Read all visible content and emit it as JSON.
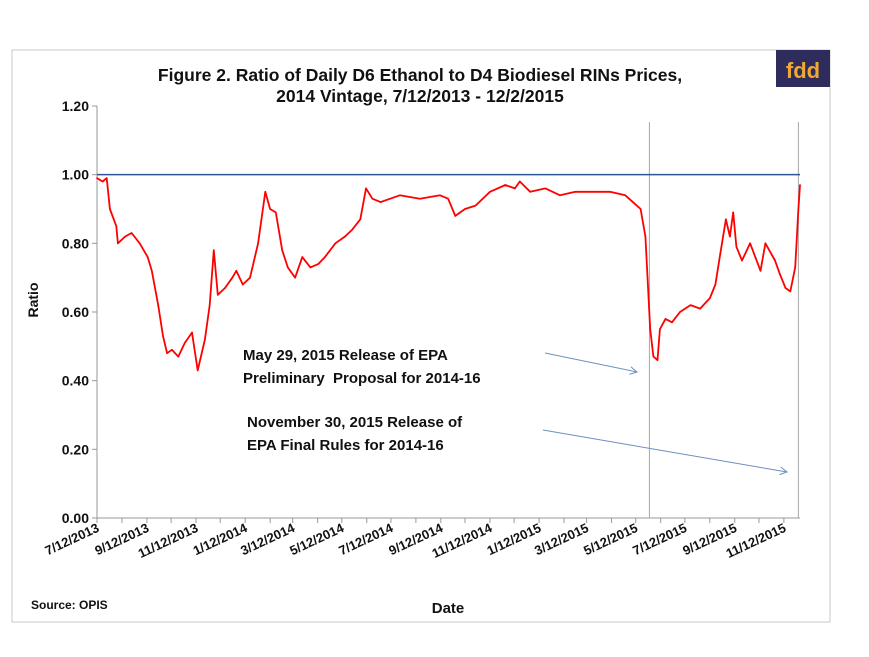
{
  "logo": {
    "text": "fdd",
    "bg": "#2e2c5c",
    "fg": "#f0a830"
  },
  "source": "Source: OPIS",
  "chart_data": {
    "type": "line",
    "title": "Figure 2. Ratio of Daily D6 Ethanol to D4 Biodiesel RINs Prices,",
    "subtitle": "2014 Vintage, 7/12/2013 - 12/2/2015",
    "xlabel": "Date",
    "ylabel": "Ratio",
    "xlim": [
      "2013-07-12",
      "2015-12-02"
    ],
    "ylim": [
      0,
      1.2
    ],
    "yticks": [
      "0.00",
      "0.20",
      "0.40",
      "0.60",
      "0.80",
      "1.00",
      "1.20"
    ],
    "xticks": [
      "7/12/2013",
      "9/12/2013",
      "11/12/2013",
      "1/12/2014",
      "3/12/2014",
      "5/12/2014",
      "7/12/2014",
      "9/12/2014",
      "11/12/2014",
      "1/12/2015",
      "3/12/2015",
      "5/12/2015",
      "7/12/2015",
      "9/12/2015",
      "11/12/2015"
    ],
    "grid": false,
    "reference_line": {
      "y": 1.0,
      "color": "#2f5597"
    },
    "series_color": "#ff0000",
    "x": [
      "2013-07-12",
      "2013-07-19",
      "2013-07-24",
      "2013-07-28",
      "2013-08-05",
      "2013-08-07",
      "2013-08-16",
      "2013-08-24",
      "2013-09-03",
      "2013-09-13",
      "2013-09-18",
      "2013-09-26",
      "2013-10-02",
      "2013-10-07",
      "2013-10-13",
      "2013-10-21",
      "2013-10-29",
      "2013-11-07",
      "2013-11-14",
      "2013-11-23",
      "2013-11-29",
      "2013-12-04",
      "2013-12-09",
      "2013-12-18",
      "2013-12-27",
      "2014-01-01",
      "2014-01-09",
      "2014-01-18",
      "2014-01-28",
      "2014-02-06",
      "2014-02-12",
      "2014-02-19",
      "2014-02-27",
      "2014-03-06",
      "2014-03-15",
      "2014-03-24",
      "2014-04-03",
      "2014-04-13",
      "2014-04-21",
      "2014-05-04",
      "2014-05-16",
      "2014-05-25",
      "2014-06-04",
      "2014-06-11",
      "2014-06-19",
      "2014-06-29",
      "2014-07-23",
      "2014-08-17",
      "2014-09-11",
      "2014-09-21",
      "2014-09-30",
      "2014-10-12",
      "2014-10-25",
      "2014-11-12",
      "2014-12-01",
      "2014-12-13",
      "2014-12-19",
      "2015-01-01",
      "2015-01-20",
      "2015-02-07",
      "2015-02-26",
      "2015-03-16",
      "2015-04-10",
      "2015-04-29",
      "2015-05-18",
      "2015-05-24",
      "2015-05-30",
      "2015-06-03",
      "2015-06-08",
      "2015-06-11",
      "2015-06-18",
      "2015-06-26",
      "2015-07-06",
      "2015-07-19",
      "2015-07-31",
      "2015-08-12",
      "2015-08-19",
      "2015-08-25",
      "2015-09-01",
      "2015-09-06",
      "2015-09-10",
      "2015-09-14",
      "2015-09-21",
      "2015-10-01",
      "2015-10-14",
      "2015-10-20",
      "2015-11-01",
      "2015-11-07",
      "2015-11-14",
      "2015-11-20",
      "2015-11-26",
      "2015-11-30",
      "2015-12-02"
    ],
    "y": [
      0.99,
      0.98,
      0.99,
      0.9,
      0.85,
      0.8,
      0.82,
      0.83,
      0.8,
      0.76,
      0.72,
      0.62,
      0.53,
      0.48,
      0.49,
      0.47,
      0.51,
      0.54,
      0.43,
      0.52,
      0.62,
      0.78,
      0.65,
      0.67,
      0.7,
      0.72,
      0.68,
      0.7,
      0.8,
      0.95,
      0.9,
      0.89,
      0.78,
      0.73,
      0.7,
      0.76,
      0.73,
      0.74,
      0.76,
      0.8,
      0.82,
      0.84,
      0.87,
      0.96,
      0.93,
      0.92,
      0.94,
      0.93,
      0.94,
      0.93,
      0.88,
      0.9,
      0.91,
      0.95,
      0.97,
      0.96,
      0.98,
      0.95,
      0.96,
      0.94,
      0.95,
      0.95,
      0.95,
      0.94,
      0.9,
      0.82,
      0.55,
      0.47,
      0.46,
      0.55,
      0.58,
      0.57,
      0.6,
      0.62,
      0.61,
      0.64,
      0.68,
      0.77,
      0.87,
      0.82,
      0.89,
      0.79,
      0.75,
      0.8,
      0.72,
      0.8,
      0.75,
      0.71,
      0.67,
      0.66,
      0.73,
      0.9,
      0.97
    ],
    "event_lines": [
      "2015-05-29",
      "2015-11-30"
    ],
    "annotations": [
      {
        "lines": [
          "May 29, 2015 Release of EPA",
          "Preliminary  Proposal for 2014-16"
        ],
        "points_to": "2015-05-29"
      },
      {
        "lines": [
          "November 30, 2015 Release of",
          "EPA Final Rules for 2014-16"
        ],
        "points_to": "2015-11-30"
      }
    ]
  }
}
